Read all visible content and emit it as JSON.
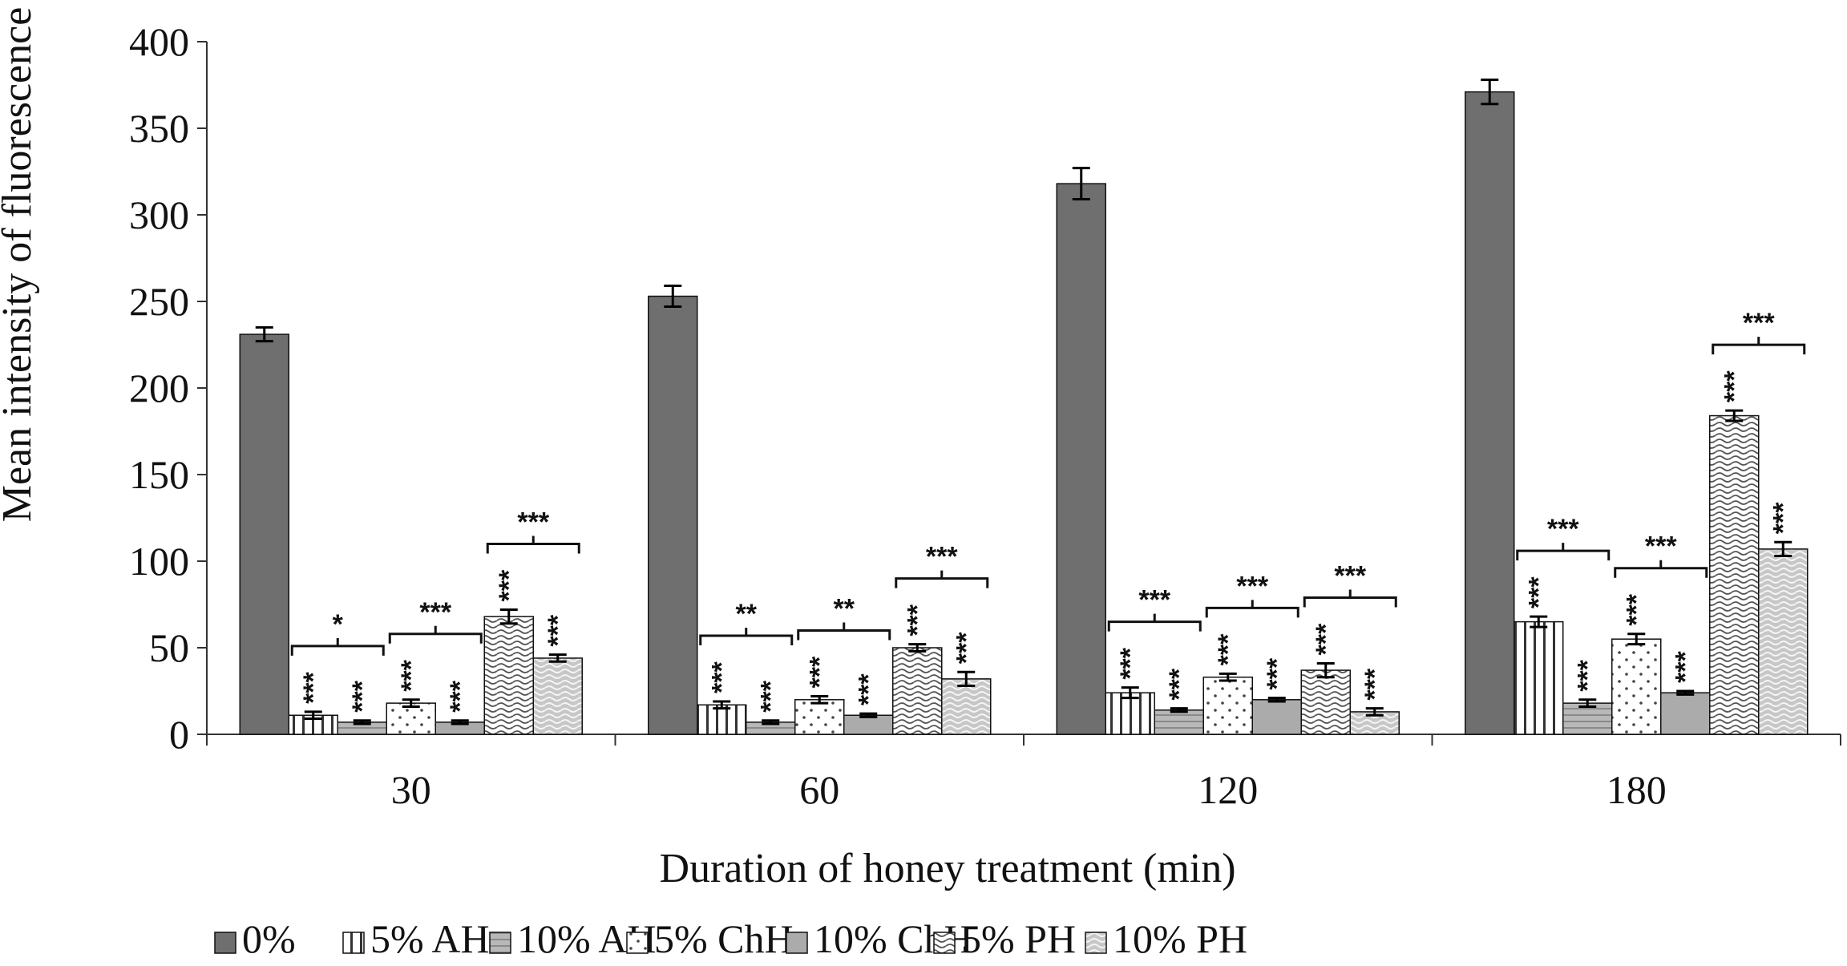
{
  "chart_data": {
    "type": "bar",
    "title": "",
    "xlabel": "Duration of honey treatment (min)",
    "ylabel": "Mean intensity of fluorescence",
    "ylim": [
      0,
      400
    ],
    "yticks": [
      0,
      50,
      100,
      150,
      200,
      250,
      300,
      350,
      400
    ],
    "grid": false,
    "legend_position": "bottom",
    "categories": [
      "30",
      "60",
      "120",
      "180"
    ],
    "series": [
      {
        "name": "0%",
        "pattern": "solid-dark",
        "values": [
          231,
          253,
          318,
          371
        ],
        "errors": [
          4,
          6,
          9,
          7
        ]
      },
      {
        "name": "5% AH",
        "pattern": "vertical",
        "values": [
          11,
          17,
          24,
          65
        ],
        "errors": [
          2,
          2,
          3,
          3
        ]
      },
      {
        "name": "10% AH",
        "pattern": "horizontal",
        "values": [
          7,
          7,
          14,
          18
        ],
        "errors": [
          1,
          1,
          1,
          2
        ]
      },
      {
        "name": "5% ChH",
        "pattern": "dots",
        "values": [
          18,
          20,
          33,
          55
        ],
        "errors": [
          2,
          2,
          2,
          3
        ]
      },
      {
        "name": "10% ChH",
        "pattern": "solid-light",
        "values": [
          7,
          11,
          20,
          24
        ],
        "errors": [
          1,
          1,
          1,
          1
        ]
      },
      {
        "name": "5% PH",
        "pattern": "wave",
        "values": [
          68,
          50,
          37,
          184
        ],
        "errors": [
          4,
          2,
          4,
          3
        ]
      },
      {
        "name": "10% PH",
        "pattern": "wave-light",
        "values": [
          44,
          32,
          13,
          107
        ],
        "errors": [
          2,
          4,
          2,
          4
        ]
      }
    ],
    "bar_annotations": [
      [
        "",
        "***",
        "***",
        "***",
        "***",
        "***",
        "***"
      ],
      [
        "",
        "***",
        "***",
        "***",
        "***",
        "***",
        "***"
      ],
      [
        "",
        "***",
        "***",
        "***",
        "***",
        "***",
        "***"
      ],
      [
        "",
        "***",
        "***",
        "***",
        "***",
        "***",
        "***"
      ]
    ],
    "bracket_annotations": [
      [
        {
          "pair": [
            1,
            2
          ],
          "label": "*"
        },
        {
          "pair": [
            3,
            4
          ],
          "label": "***"
        },
        {
          "pair": [
            5,
            6
          ],
          "label": "***"
        }
      ],
      [
        {
          "pair": [
            1,
            2
          ],
          "label": "**"
        },
        {
          "pair": [
            3,
            4
          ],
          "label": "**"
        },
        {
          "pair": [
            5,
            6
          ],
          "label": "***"
        }
      ],
      [
        {
          "pair": [
            1,
            2
          ],
          "label": "***"
        },
        {
          "pair": [
            3,
            4
          ],
          "label": "***"
        },
        {
          "pair": [
            5,
            6
          ],
          "label": "***"
        }
      ],
      [
        {
          "pair": [
            1,
            2
          ],
          "label": "***"
        },
        {
          "pair": [
            3,
            4
          ],
          "label": "***"
        },
        {
          "pair": [
            5,
            6
          ],
          "label": "***"
        }
      ]
    ]
  }
}
